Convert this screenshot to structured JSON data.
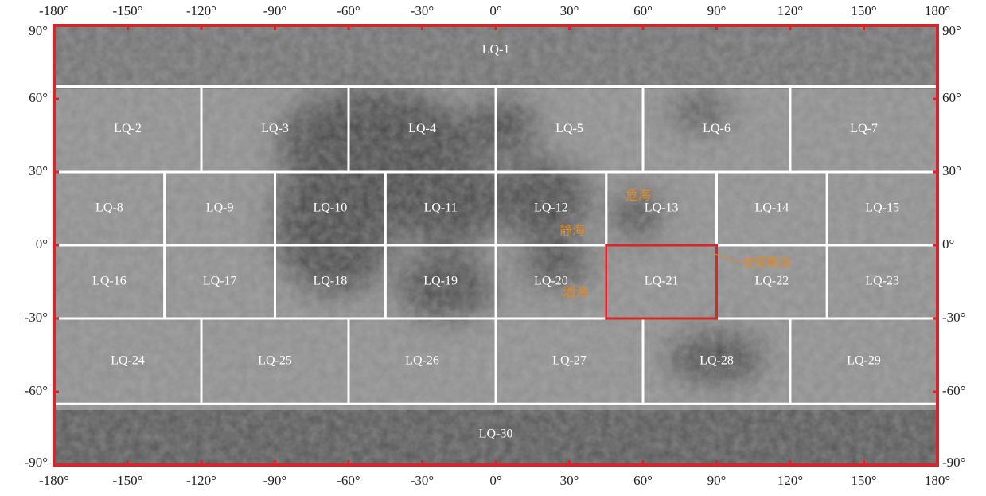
{
  "map": {
    "lon_ticks": [
      {
        "value": -180,
        "label": "-180°"
      },
      {
        "value": -150,
        "label": "-150°"
      },
      {
        "value": -120,
        "label": "-120°"
      },
      {
        "value": -90,
        "label": "-90°"
      },
      {
        "value": -60,
        "label": "-60°"
      },
      {
        "value": -30,
        "label": "-30°"
      },
      {
        "value": 0,
        "label": "0°"
      },
      {
        "value": 30,
        "label": "30°"
      },
      {
        "value": 60,
        "label": "60°"
      },
      {
        "value": 90,
        "label": "90°"
      },
      {
        "value": 120,
        "label": "120°"
      },
      {
        "value": 150,
        "label": "150°"
      },
      {
        "value": 180,
        "label": "180°"
      }
    ],
    "lat_ticks": [
      {
        "value": 90,
        "label": "90°"
      },
      {
        "value": 60,
        "label": "60°"
      },
      {
        "value": 30,
        "label": "30°"
      },
      {
        "value": 0,
        "label": "0°"
      },
      {
        "value": -30,
        "label": "-30°"
      },
      {
        "value": -60,
        "label": "-60°"
      },
      {
        "value": -90,
        "label": "-90°"
      }
    ],
    "lonlim": [
      -180,
      180
    ],
    "latlim": [
      90,
      -90
    ],
    "rows": [
      {
        "lat": [
          90,
          65
        ],
        "tiles": [
          {
            "label": "LQ-1"
          }
        ]
      },
      {
        "lat": [
          65,
          30
        ],
        "tiles": [
          {
            "label": "LQ-2"
          },
          {
            "label": "LQ-3"
          },
          {
            "label": "LQ-4"
          },
          {
            "label": "LQ-5"
          },
          {
            "label": "LQ-6"
          },
          {
            "label": "LQ-7"
          }
        ]
      },
      {
        "lat": [
          30,
          0
        ],
        "tiles": [
          {
            "label": "LQ-8"
          },
          {
            "label": "LQ-9"
          },
          {
            "label": "LQ-10"
          },
          {
            "label": "LQ-11"
          },
          {
            "label": "LQ-12"
          },
          {
            "label": "LQ-13"
          },
          {
            "label": "LQ-14"
          },
          {
            "label": "LQ-15"
          }
        ]
      },
      {
        "lat": [
          0,
          -30
        ],
        "tiles": [
          {
            "label": "LQ-16"
          },
          {
            "label": "LQ-17"
          },
          {
            "label": "LQ-18"
          },
          {
            "label": "LQ-19"
          },
          {
            "label": "LQ-20"
          },
          {
            "label": "LQ-21",
            "highlighted": true
          },
          {
            "label": "LQ-22"
          },
          {
            "label": "LQ-23"
          }
        ]
      },
      {
        "lat": [
          -30,
          -65
        ],
        "tiles": [
          {
            "label": "LQ-24"
          },
          {
            "label": "LQ-25"
          },
          {
            "label": "LQ-26"
          },
          {
            "label": "LQ-27"
          },
          {
            "label": "LQ-28"
          },
          {
            "label": "LQ-29"
          }
        ]
      },
      {
        "lat": [
          -65,
          -90
        ],
        "tiles": [
          {
            "label": "LQ-30"
          }
        ]
      }
    ],
    "annotations": [
      "危海",
      "静海",
      "酒海",
      "史密斯海"
    ]
  }
}
